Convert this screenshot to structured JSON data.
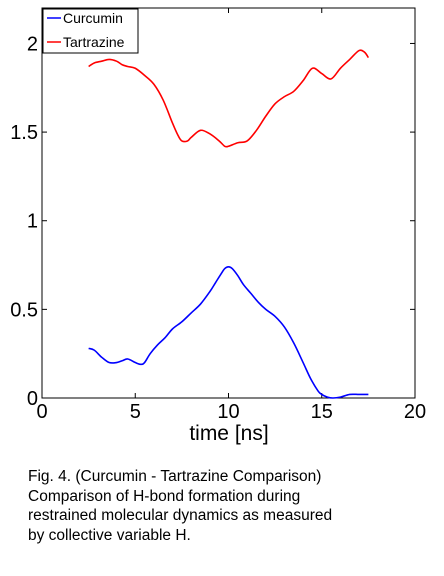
{
  "chart_data": {
    "type": "line",
    "xlabel": "time [ns]",
    "ylabel": "",
    "xlim": [
      0,
      20
    ],
    "ylim": [
      0,
      2.2
    ],
    "xticks": [
      0,
      5,
      10,
      15,
      20
    ],
    "yticks": [
      0,
      0.5,
      1,
      1.5,
      2
    ],
    "xtick_labels": [
      "0",
      "5",
      "10",
      "15",
      "20"
    ],
    "ytick_labels": [
      "0",
      "0.5",
      "1",
      "1.5",
      "2"
    ],
    "grid": false,
    "legend": "top-left",
    "series": [
      {
        "name": "Curcumin",
        "color": "#0000ff",
        "x": [
          2.5,
          2.8,
          3.2,
          3.6,
          4.0,
          4.3,
          4.6,
          5.0,
          5.3,
          5.5,
          5.8,
          6.2,
          6.6,
          7.0,
          7.5,
          8.0,
          8.5,
          9.0,
          9.3,
          9.6,
          9.8,
          10.0,
          10.2,
          10.5,
          10.8,
          11.2,
          11.6,
          12.0,
          12.5,
          13.0,
          13.5,
          14.0,
          14.4,
          14.8,
          15.0,
          15.3,
          15.6,
          16.0,
          16.5,
          17.0,
          17.5
        ],
        "y": [
          0.28,
          0.27,
          0.23,
          0.2,
          0.2,
          0.21,
          0.22,
          0.2,
          0.19,
          0.2,
          0.25,
          0.3,
          0.34,
          0.39,
          0.43,
          0.48,
          0.53,
          0.6,
          0.65,
          0.7,
          0.73,
          0.74,
          0.73,
          0.69,
          0.64,
          0.59,
          0.54,
          0.5,
          0.46,
          0.4,
          0.31,
          0.2,
          0.11,
          0.04,
          0.02,
          0.005,
          0.0,
          0.005,
          0.02,
          0.02,
          0.02
        ]
      },
      {
        "name": "Tartrazine",
        "color": "#ff0000",
        "x": [
          2.5,
          2.8,
          3.2,
          3.6,
          4.0,
          4.3,
          4.6,
          5.0,
          5.5,
          6.0,
          6.5,
          7.0,
          7.3,
          7.5,
          7.8,
          8.0,
          8.5,
          9.0,
          9.5,
          9.8,
          10.0,
          10.5,
          11.0,
          11.5,
          12.0,
          12.5,
          13.0,
          13.5,
          14.0,
          14.5,
          15.0,
          15.5,
          16.0,
          16.5,
          17.0,
          17.3,
          17.5
        ],
        "y": [
          1.87,
          1.89,
          1.9,
          1.91,
          1.9,
          1.88,
          1.87,
          1.86,
          1.82,
          1.77,
          1.68,
          1.55,
          1.48,
          1.45,
          1.45,
          1.47,
          1.51,
          1.49,
          1.45,
          1.42,
          1.42,
          1.44,
          1.45,
          1.51,
          1.59,
          1.66,
          1.7,
          1.73,
          1.79,
          1.86,
          1.83,
          1.8,
          1.86,
          1.91,
          1.96,
          1.95,
          1.92
        ]
      }
    ]
  },
  "caption": {
    "lines": [
      "Fig. 4. (Curcumin - Tartrazine Comparison)",
      "Comparison of H-bond formation during",
      "restrained molecular dynamics as measured",
      "by collective variable H."
    ]
  }
}
